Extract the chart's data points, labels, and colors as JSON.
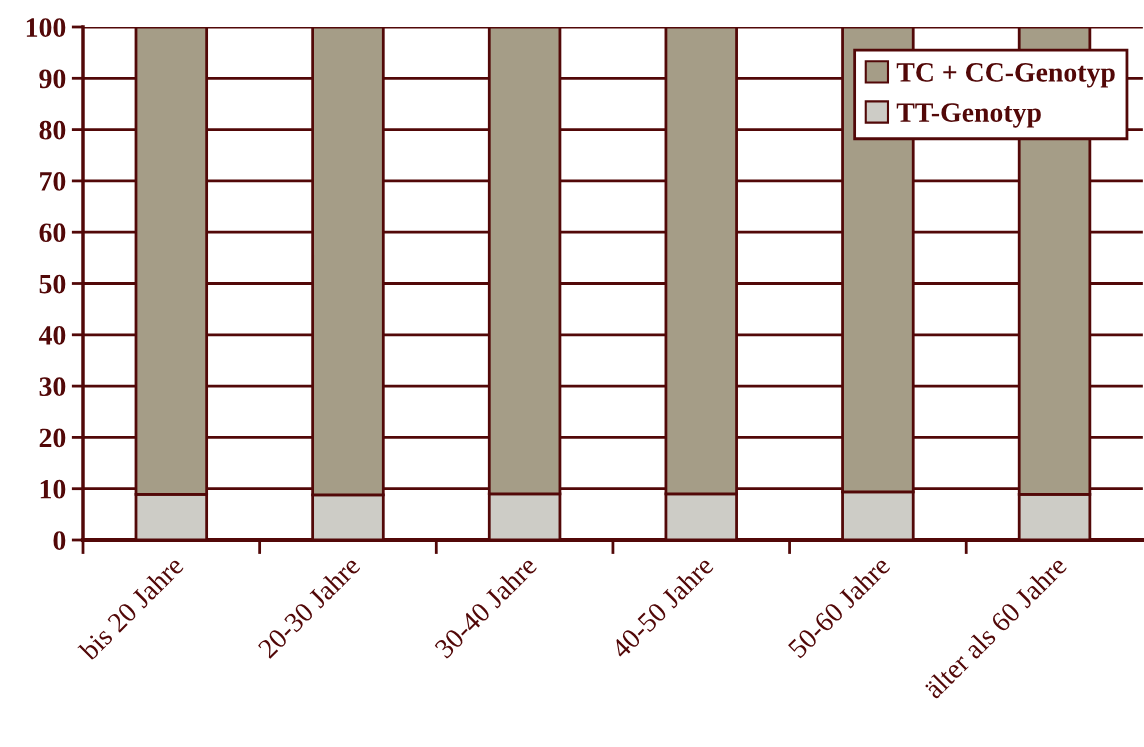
{
  "chart_data": {
    "type": "bar",
    "stacked": true,
    "categories": [
      "bis 20 Jahre",
      "20-30 Jahre",
      "30-40 Jahre",
      "40-50 Jahre",
      "50-60 Jahre",
      "älter als 60 Jahre"
    ],
    "series": [
      {
        "name": "TT-Genotyp",
        "color": "#cdccc6",
        "values": [
          8.9,
          8.8,
          9.0,
          9.0,
          9.4,
          8.9
        ]
      },
      {
        "name": "TC + CC-Genotyp",
        "color": "#a59d87",
        "values": [
          91.1,
          91.2,
          91.0,
          91.0,
          90.6,
          91.1
        ]
      }
    ],
    "ylim": [
      0,
      100
    ],
    "yticks": [
      0,
      10,
      20,
      30,
      40,
      50,
      60,
      70,
      80,
      90,
      100
    ],
    "grid": "y",
    "legend": "top right"
  }
}
